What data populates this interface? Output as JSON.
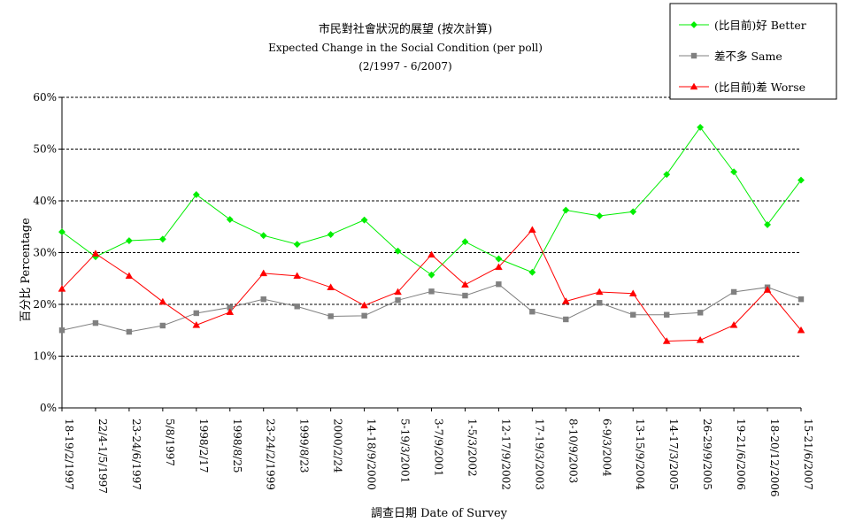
{
  "chart_data": {
    "type": "line",
    "title": "市民對社會狀況的展望 (按次計算)",
    "subtitle": "Expected Change in the Social Condition  (per poll)",
    "period": "(2/1997 - 6/2007)",
    "xlabel": "調查日期 Date of Survey",
    "ylabel": "百分比 Percentage",
    "ylim": [
      0,
      60
    ],
    "y_ticks": [
      "0%",
      "10%",
      "20%",
      "30%",
      "40%",
      "50%",
      "60%"
    ],
    "grid": true,
    "legend_position": "top-right",
    "categories": [
      "18-19/2/1997",
      "22/4-1/5/1997",
      "23-24/6/1997",
      "5/8/1997",
      "1998/2/17",
      "1998/8/25",
      "23-24/2/1999",
      "1999/8/23",
      "2000/2/24",
      "14-18/9/2000",
      "5-19/3/2001",
      "3-7/9/2001",
      "1-5/3/2002",
      "12-17/9/2002",
      "17-19/3/2003",
      "8-10/9/2003",
      "6-9/3/2004",
      "13-15/9/2004",
      "14-17/3/2005",
      "26-29/9/2005",
      "19-21/6/2006",
      "18-20/12/2006",
      "15-21/6/2007"
    ],
    "series": [
      {
        "name": "(比目前)好 Better",
        "color": "#00ee00",
        "marker": "diamond",
        "values": [
          34,
          29.2,
          32.3,
          32.6,
          41.2,
          36.4,
          33.3,
          31.6,
          33.5,
          36.3,
          30.3,
          25.7,
          32.1,
          28.8,
          26.2,
          38.2,
          37.1,
          37.9,
          45.1,
          54.2,
          45.6,
          35.4,
          44
        ]
      },
      {
        "name": "差不多 Same",
        "color": "#808080",
        "marker": "square",
        "values": [
          15,
          16.4,
          14.7,
          15.9,
          18.3,
          19.4,
          21,
          19.6,
          17.7,
          17.8,
          20.8,
          22.5,
          21.7,
          23.9,
          18.6,
          17.1,
          20.3,
          18,
          18,
          18.4,
          22.4,
          23.3,
          21
        ]
      },
      {
        "name": "(比目前)差 Worse",
        "color": "#ff0000",
        "marker": "triangle",
        "values": [
          23,
          29.8,
          25.5,
          20.5,
          16,
          18.5,
          26,
          25.5,
          23.3,
          19.8,
          22.4,
          29.6,
          23.8,
          27.2,
          34.4,
          20.6,
          22.4,
          22.1,
          12.9,
          13.1,
          16,
          22.8,
          15
        ]
      }
    ]
  }
}
